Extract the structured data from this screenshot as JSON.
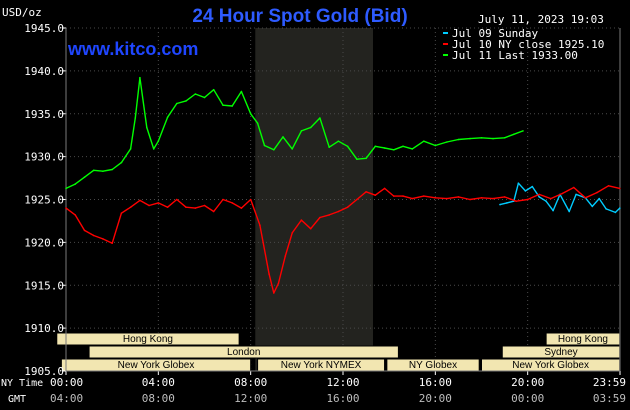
{
  "colors": {
    "background": "#000000",
    "plot_background": "#000000",
    "shade": "#23231f",
    "grid": "#4a4a4a",
    "green": "#00ff00",
    "red": "#ff0000",
    "cyan": "#00ccff",
    "white": "#ffffff",
    "market_box": "#f2e6b1",
    "title": "#2e5bff",
    "brand": "#1f46ff"
  },
  "header": {
    "title": "24 Hour Spot Gold (Bid)",
    "unit": "USD/oz",
    "timestamp": "July 11, 2023 19:03",
    "brand": "www.kitco.com"
  },
  "legend": [
    {
      "label": "Jul 09 Sunday",
      "color": "#00ccff"
    },
    {
      "label": "Jul 10 NY close 1925.10",
      "color": "#ff0000"
    },
    {
      "label": "Jul 11 Last 1933.00",
      "color": "#00ff00"
    }
  ],
  "axis": {
    "y_ticks": [
      "1945.0",
      "1940.0",
      "1935.0",
      "1930.0",
      "1925.0",
      "1920.0",
      "1915.0",
      "1910.0",
      "1905.0"
    ],
    "x_ticks_ny": [
      "00:00",
      "04:00",
      "08:00",
      "12:00",
      "16:00",
      "20:00",
      "23:59"
    ],
    "x_ticks_gmt": [
      "04:00",
      "08:00",
      "12:00",
      "16:00",
      "20:00",
      "00:00",
      "03:59"
    ],
    "row_label_ny": "NY Time",
    "row_label_gmt": "GMT"
  },
  "markets": {
    "hong_kong": "Hong Kong",
    "london": "London",
    "new_york_globex": "New York Globex",
    "new_york_nymex": "New York NYMEX",
    "ny_globex": "NY Globex",
    "sydney": "Sydney"
  },
  "chart_data": {
    "type": "line",
    "title": "24 Hour Spot Gold (Bid)",
    "ylabel": "USD/oz",
    "ylim": [
      1905.0,
      1945.0
    ],
    "xlim": [
      0,
      24
    ],
    "grid": true,
    "legend_position": "top-right",
    "shaded_interval": [
      8.2,
      13.3
    ],
    "series": [
      {
        "name": "Jul 09 Sunday",
        "color": "#00ccff",
        "x": [
          18.8,
          19.1,
          19.4,
          19.6,
          19.9,
          20.2,
          20.5,
          20.8,
          21.1,
          21.4,
          21.8,
          22.1,
          22.5,
          22.8,
          23.1,
          23.4,
          23.8,
          23.99
        ],
        "y": [
          1924.4,
          1924.6,
          1924.8,
          1926.9,
          1926.0,
          1926.5,
          1925.3,
          1924.8,
          1923.7,
          1925.6,
          1923.6,
          1925.6,
          1925.2,
          1924.2,
          1925.1,
          1923.9,
          1923.5,
          1924.0
        ]
      },
      {
        "name": "Jul 10 NY close 1925.10",
        "color": "#ff0000",
        "x": [
          0.0,
          0.4,
          0.8,
          1.2,
          1.6,
          2.0,
          2.4,
          2.8,
          3.2,
          3.6,
          4.0,
          4.4,
          4.8,
          5.2,
          5.6,
          6.0,
          6.4,
          6.8,
          7.2,
          7.6,
          8.0,
          8.4,
          8.8,
          9.0,
          9.2,
          9.5,
          9.8,
          10.2,
          10.6,
          11.0,
          11.4,
          11.8,
          12.2,
          12.6,
          13.0,
          13.4,
          13.8,
          14.2,
          14.6,
          15.0,
          15.5,
          16.0,
          16.5,
          17.0,
          17.5,
          18.0,
          18.5,
          19.0,
          19.5,
          20.0,
          20.5,
          21.0,
          21.5,
          22.0,
          22.5,
          23.0,
          23.5,
          23.99
        ],
        "y": [
          1924.0,
          1923.2,
          1921.4,
          1920.8,
          1920.4,
          1919.9,
          1923.4,
          1924.1,
          1924.9,
          1924.3,
          1924.6,
          1924.1,
          1925.0,
          1924.1,
          1924.0,
          1924.3,
          1923.6,
          1925.0,
          1924.6,
          1924.0,
          1925.0,
          1922.0,
          1916.3,
          1914.1,
          1915.2,
          1918.4,
          1921.1,
          1922.6,
          1921.6,
          1922.9,
          1923.2,
          1923.6,
          1924.1,
          1925.0,
          1925.9,
          1925.5,
          1926.3,
          1925.4,
          1925.4,
          1925.1,
          1925.4,
          1925.2,
          1925.1,
          1925.3,
          1925.0,
          1925.2,
          1925.1,
          1925.3,
          1924.8,
          1925.0,
          1925.6,
          1925.1,
          1925.7,
          1926.4,
          1925.2,
          1925.8,
          1926.6,
          1926.3
        ]
      },
      {
        "name": "Jul 11 Last 1933.00",
        "color": "#00ff00",
        "x": [
          0.0,
          0.4,
          0.8,
          1.2,
          1.6,
          2.0,
          2.4,
          2.8,
          3.0,
          3.2,
          3.5,
          3.8,
          4.0,
          4.4,
          4.8,
          5.2,
          5.6,
          6.0,
          6.4,
          6.8,
          7.2,
          7.6,
          8.0,
          8.3,
          8.6,
          9.0,
          9.4,
          9.8,
          10.2,
          10.6,
          11.0,
          11.4,
          11.8,
          12.2,
          12.6,
          13.0,
          13.4,
          13.8,
          14.2,
          14.6,
          15.0,
          15.5,
          16.0,
          16.5,
          17.0,
          17.5,
          18.0,
          18.5,
          19.0,
          19.4,
          19.8
        ],
        "y": [
          1926.3,
          1926.8,
          1927.6,
          1928.4,
          1928.3,
          1928.5,
          1929.3,
          1930.9,
          1934.5,
          1939.2,
          1933.4,
          1930.9,
          1931.8,
          1934.6,
          1936.2,
          1936.5,
          1937.3,
          1936.9,
          1937.8,
          1936.0,
          1935.9,
          1937.6,
          1935.0,
          1933.9,
          1931.3,
          1930.8,
          1932.3,
          1930.9,
          1933.0,
          1933.4,
          1934.5,
          1931.1,
          1931.8,
          1931.2,
          1929.7,
          1929.8,
          1931.2,
          1931.0,
          1930.8,
          1931.2,
          1930.9,
          1931.8,
          1931.3,
          1931.7,
          1932.0,
          1932.1,
          1932.2,
          1932.1,
          1932.2,
          1932.6,
          1933.0
        ]
      }
    ],
    "y_tick_labels": [
      "1945.0",
      "1940.0",
      "1935.0",
      "1930.0",
      "1925.0",
      "1920.0",
      "1915.0",
      "1910.0",
      "1905.0"
    ],
    "x_tick_labels_ny": [
      "00:00",
      "04:00",
      "08:00",
      "12:00",
      "16:00",
      "20:00",
      "23:59"
    ],
    "x_tick_labels_gmt": [
      "04:00",
      "08:00",
      "12:00",
      "16:00",
      "20:00",
      "00:00",
      "03:59"
    ]
  }
}
